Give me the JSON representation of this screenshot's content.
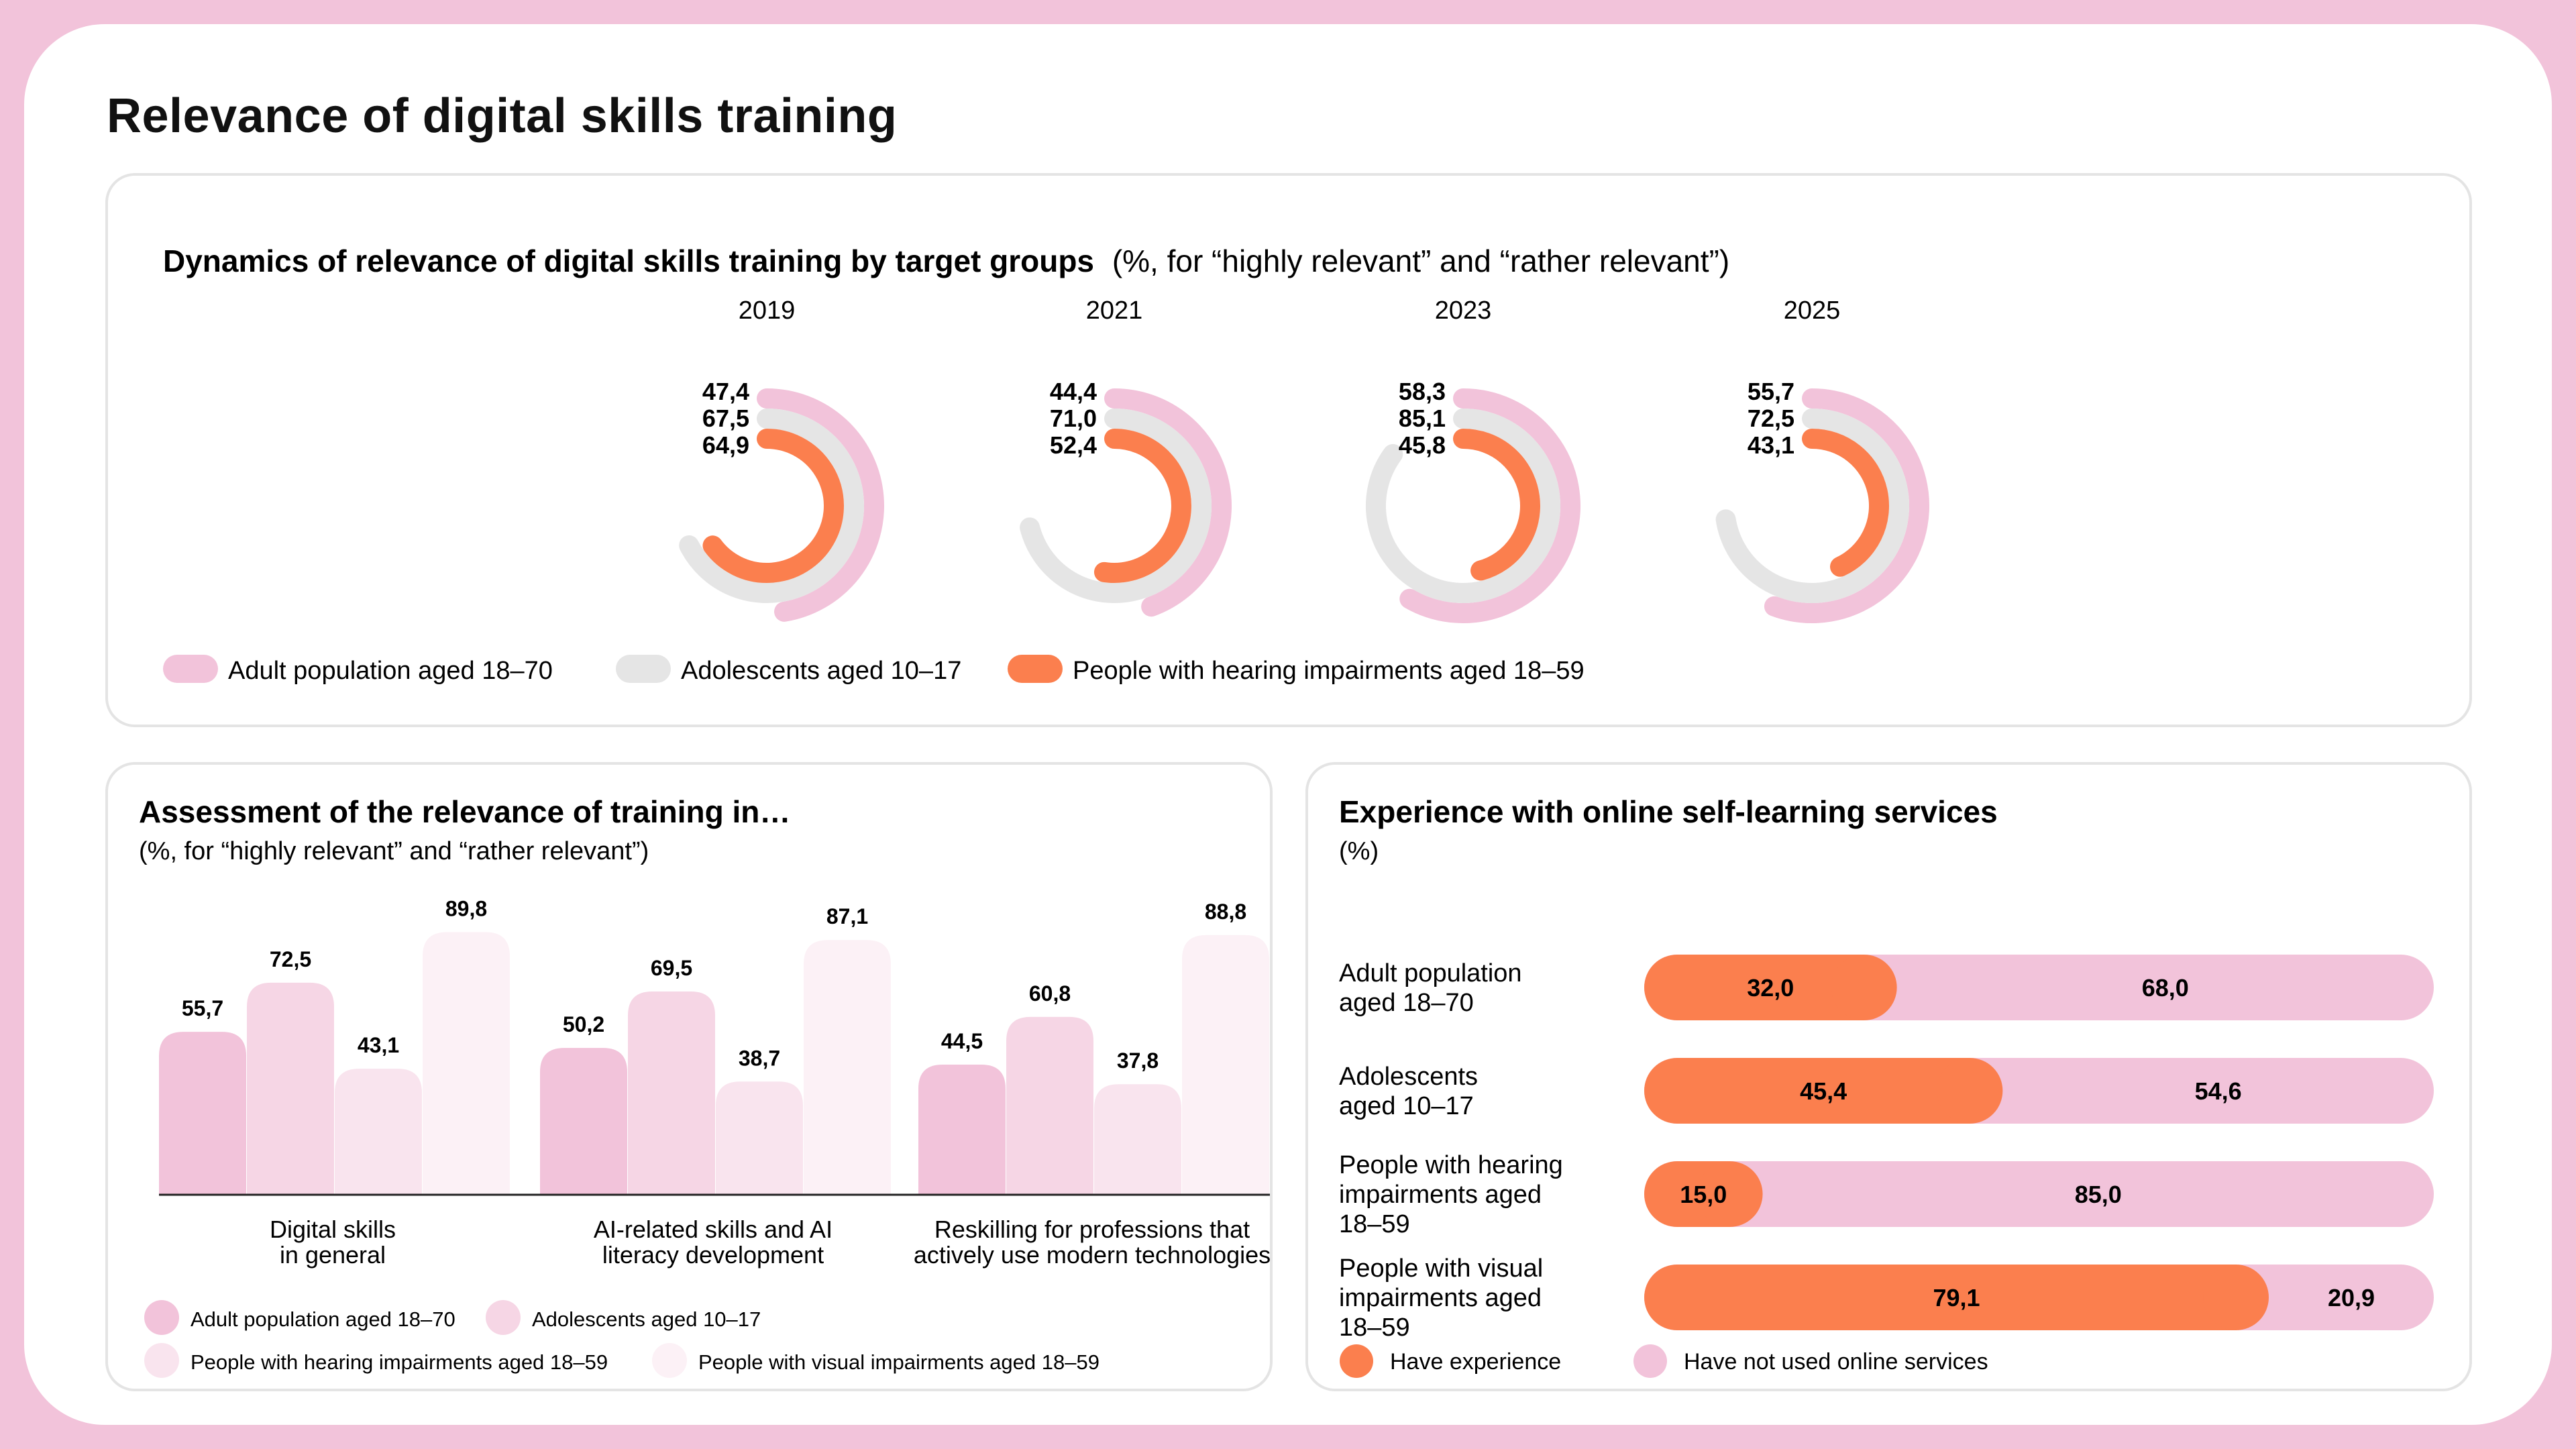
{
  "page": {
    "title": "Relevance of digital skills training"
  },
  "colors": {
    "adult": "#f2c3da",
    "adolescent": "#e5e5e5",
    "hearing": "#fb7f4e",
    "bar_adult": "#f2c3da",
    "bar_adolescent": "#f6d6e5",
    "bar_hearing": "#f9e4ee",
    "bar_visual": "#fcf1f6",
    "not_used": "#f2c3da"
  },
  "top_panel": {
    "title_bold": "Dynamics of relevance of digital skills training by target groups",
    "title_normal": "(%, for “highly relevant” and “rather relevant”)",
    "legend": [
      {
        "label": "Adult population aged 18–70",
        "color_key": "adult"
      },
      {
        "label": "Adolescents aged 10–17",
        "color_key": "adolescent"
      },
      {
        "label": "People with hearing impairments aged 18–59",
        "color_key": "hearing"
      }
    ]
  },
  "bl_panel": {
    "title": "Assessment of the relevance of training in…",
    "subtitle": "(%, for “highly relevant” and “rather relevant”)",
    "legend": [
      {
        "label": "Adult population aged 18–70",
        "color_key": "bar_adult"
      },
      {
        "label": "Adolescents aged 10–17",
        "color_key": "bar_adolescent"
      },
      {
        "label": "People with hearing impairments aged 18–59",
        "color_key": "bar_hearing"
      },
      {
        "label": "People with visual impairments aged 18–59",
        "color_key": "bar_visual"
      }
    ]
  },
  "br_panel": {
    "title": "Experience with online self-learning services",
    "subtitle": "(%)",
    "legend": [
      {
        "label": "Have experience",
        "color_key": "hearing"
      },
      {
        "label": "Have not used online services",
        "color_key": "not_used"
      }
    ]
  },
  "chart_data": [
    {
      "type": "radial_bar",
      "title": "Dynamics of relevance of digital skills training by target groups",
      "unit": "%",
      "years": [
        "2019",
        "2021",
        "2023",
        "2025"
      ],
      "series": [
        {
          "name": "Adult population aged 18–70",
          "color_key": "adult",
          "values": [
            47.4,
            44.4,
            58.3,
            55.7
          ],
          "labels": [
            "47,4",
            "44,4",
            "58,3",
            "55,7"
          ]
        },
        {
          "name": "Adolescents aged 10–17",
          "color_key": "adolescent",
          "values": [
            67.5,
            71.0,
            85.1,
            72.5
          ],
          "labels": [
            "67,5",
            "71,0",
            "85,1",
            "72,5"
          ]
        },
        {
          "name": "People with hearing impairments aged 18–59",
          "color_key": "hearing",
          "values": [
            64.9,
            52.4,
            45.8,
            43.1
          ],
          "labels": [
            "64,9",
            "52,4",
            "45,8",
            "43,1"
          ]
        }
      ]
    },
    {
      "type": "bar",
      "title": "Assessment of the relevance of training in…",
      "unit": "%",
      "categories": [
        "Digital skills\nin general",
        "AI-related skills and AI\nliteracy development",
        "Reskilling for professions that\nactively use modern technologies"
      ],
      "ylim": [
        0,
        100
      ],
      "series": [
        {
          "name": "Adult population aged 18–70",
          "color_key": "bar_adult",
          "values": [
            55.7,
            50.2,
            44.5
          ],
          "labels": [
            "55,7",
            "50,2",
            "44,5"
          ]
        },
        {
          "name": "Adolescents aged 10–17",
          "color_key": "bar_adolescent",
          "values": [
            72.5,
            69.5,
            60.8
          ],
          "labels": [
            "72,5",
            "69,5",
            "60,8"
          ]
        },
        {
          "name": "People with hearing impairments aged 18–59",
          "color_key": "bar_hearing",
          "values": [
            43.1,
            38.7,
            37.8
          ],
          "labels": [
            "43,1",
            "38,7",
            "37,8"
          ]
        },
        {
          "name": "People with visual impairments aged 18–59",
          "color_key": "bar_visual",
          "values": [
            89.8,
            87.1,
            88.8
          ],
          "labels": [
            "89,8",
            "87,1",
            "88,8"
          ]
        }
      ]
    },
    {
      "type": "stacked_bar_horizontal",
      "title": "Experience with online self-learning services",
      "unit": "%",
      "categories": [
        "Adult population\naged 18–70",
        "Adolescents\naged 10–17",
        "People with hearing\nimpairments aged\n18–59",
        "People with visual\nimpairments aged\n18–59"
      ],
      "series": [
        {
          "name": "Have experience",
          "color_key": "hearing",
          "values": [
            32.0,
            45.4,
            15.0,
            79.1
          ],
          "labels": [
            "32,0",
            "45,4",
            "15,0",
            "79,1"
          ]
        },
        {
          "name": "Have not used online services",
          "color_key": "not_used",
          "values": [
            68.0,
            54.6,
            85.0,
            20.9
          ],
          "labels": [
            "68,0",
            "54,6",
            "85,0",
            "20,9"
          ]
        }
      ]
    }
  ]
}
